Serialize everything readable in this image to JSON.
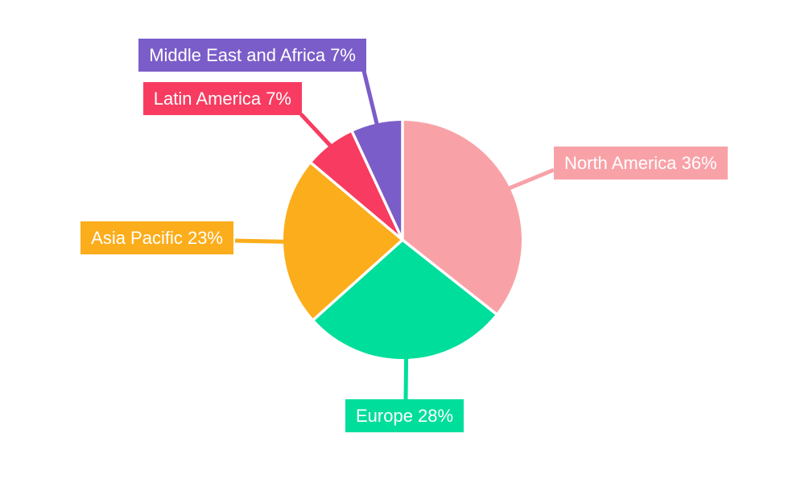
{
  "chart_data": {
    "type": "pie",
    "title": "",
    "direction": "clockwise",
    "start_angle": "12-o-clock",
    "background": "#ffffff",
    "separator_color": "#ffffff",
    "label_text_color": "#ffffff",
    "categories": [
      "North America",
      "Europe",
      "Asia Pacific",
      "Latin America",
      "Middle East and Africa"
    ],
    "values": [
      36,
      28,
      23,
      7,
      7
    ],
    "slices": [
      {
        "label": "North America",
        "value": 36,
        "display": "North America 36%",
        "color": "#F8A2A8"
      },
      {
        "label": "Europe",
        "value": 28,
        "display": "Europe 28%",
        "color": "#00DE9B"
      },
      {
        "label": "Asia Pacific",
        "value": 23,
        "display": "Asia Pacific 23%",
        "color": "#FBAD1B"
      },
      {
        "label": "Latin America",
        "value": 7,
        "display": "Latin America 7%",
        "color": "#F83B60"
      },
      {
        "label": "Middle East and Africa",
        "value": 7,
        "display": "Middle East and Africa 7%",
        "color": "#7B5DC9"
      }
    ]
  }
}
